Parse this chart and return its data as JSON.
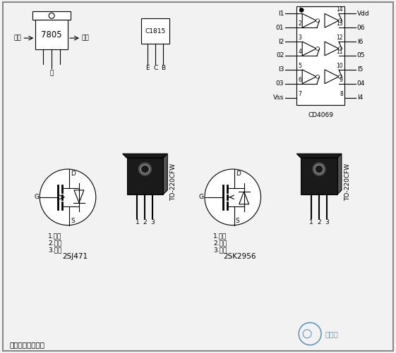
{
  "bg_color": "#f2f2f2",
  "border_color": "#888888",
  "black": "#000000",
  "white": "#ffffff",
  "dark_gray": "#1a1a1a",
  "mid_gray": "#555555",
  "light_gray": "#cccccc",
  "watermark_color": "#6699bb",
  "title_bottom": "逆变器所用元器件",
  "label_7805": "7805",
  "label_c1815": "C1815",
  "label_cd4069": "CD4069",
  "label_2sj471": "2SJ471",
  "label_2sk2956": "2SK2956",
  "label_to220": "TO-220CFW",
  "input_label": "输入",
  "output_label": "输出",
  "ground_label": "地",
  "ecb_labels": [
    "E",
    "C",
    "B"
  ],
  "mos1_labels": [
    "1.栅极",
    "2.漏极",
    "3.源极"
  ],
  "mos2_labels": [
    "1.栅极",
    "2.漏极",
    "3.源极"
  ],
  "pin_d": "D",
  "pin_g": "G",
  "pin_s": "S",
  "cd4069_left_pins": [
    "I1",
    "01",
    "I2",
    "02",
    "I3",
    "03",
    "Vss"
  ],
  "cd4069_right_pins": [
    "Vdd",
    "06",
    "I6",
    "05",
    "I5",
    "04",
    "I4"
  ],
  "watermark_text": "百阳辰"
}
